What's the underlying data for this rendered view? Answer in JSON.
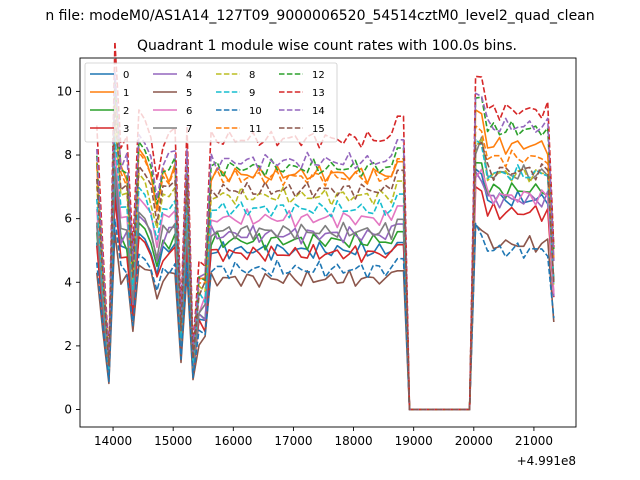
{
  "suptitle": "n file: modeM0/AS1A14_127T09_9000006520_54514cztM0_level2_quad_clean",
  "chart_data": {
    "type": "line",
    "title": "Quadrant 1 module wise count rates with 100.0s bins.",
    "xlabel": "",
    "ylabel": "",
    "offset_text": "+4.991e8",
    "xlim": [
      13450,
      21700
    ],
    "ylim": [
      -0.55,
      11.05
    ],
    "xticks": [
      14000,
      15000,
      16000,
      17000,
      18000,
      19000,
      20000,
      21000
    ],
    "yticks": [
      0,
      2,
      4,
      6,
      8,
      10
    ],
    "grid": false,
    "legend": {
      "placement": "top-left",
      "ncol": 4
    },
    "x": [
      13730,
      13830,
      13930,
      14030,
      14130,
      14230,
      14330,
      14430,
      14530,
      14630,
      14730,
      14830,
      14930,
      15030,
      15130,
      15230,
      15330,
      15430,
      15530,
      15630,
      15730,
      15830,
      15930,
      16030,
      16130,
      16230,
      16330,
      16430,
      16530,
      16630,
      16730,
      16830,
      16930,
      17030,
      17130,
      17230,
      17330,
      17430,
      17530,
      17630,
      17730,
      17830,
      17930,
      18030,
      18130,
      18230,
      18330,
      18430,
      18530,
      18630,
      18730,
      18830,
      18930,
      19030,
      19130,
      19230,
      19330,
      19430,
      19530,
      19630,
      19730,
      19830,
      19930,
      20030,
      20130,
      20230,
      20330,
      20430,
      20530,
      20630,
      20730,
      20830,
      20930,
      21030,
      21130,
      21230,
      21330
    ],
    "series": [
      {
        "name": "0",
        "color": "#1f77b4",
        "dashed": false,
        "base": 5.0,
        "gap_scale": 1.0,
        "after": 6.6
      },
      {
        "name": "1",
        "color": "#ff7f0e",
        "dashed": false,
        "base": 7.4,
        "gap_scale": 1.35,
        "after": 8.3
      },
      {
        "name": "2",
        "color": "#2ca02c",
        "dashed": false,
        "base": 5.3,
        "gap_scale": 1.1,
        "after": 6.9
      },
      {
        "name": "3",
        "color": "#d62728",
        "dashed": false,
        "base": 4.9,
        "gap_scale": 1.0,
        "after": 6.2
      },
      {
        "name": "4",
        "color": "#9467bd",
        "dashed": false,
        "base": 5.5,
        "gap_scale": 1.1,
        "after": 6.6
      },
      {
        "name": "5",
        "color": "#8c564b",
        "dashed": false,
        "base": 4.1,
        "gap_scale": 0.9,
        "after": 5.2
      },
      {
        "name": "6",
        "color": "#e377c2",
        "dashed": false,
        "base": 6.0,
        "gap_scale": 1.15,
        "after": 6.7
      },
      {
        "name": "7",
        "color": "#7f7f7f",
        "dashed": false,
        "base": 5.6,
        "gap_scale": 1.1,
        "after": 7.4
      },
      {
        "name": "8",
        "color": "#bcbd22",
        "dashed": true,
        "base": 6.7,
        "gap_scale": 1.25,
        "after": 7.4
      },
      {
        "name": "9",
        "color": "#17becf",
        "dashed": true,
        "base": 6.3,
        "gap_scale": 1.2,
        "after": 7.4
      },
      {
        "name": "10",
        "color": "#1f77b4",
        "dashed": true,
        "base": 4.4,
        "gap_scale": 0.9,
        "after": 5.0
      },
      {
        "name": "11",
        "color": "#ff7f0e",
        "dashed": true,
        "base": 7.3,
        "gap_scale": 1.35,
        "after": 7.9
      },
      {
        "name": "12",
        "color": "#2ca02c",
        "dashed": true,
        "base": 7.6,
        "gap_scale": 1.4,
        "after": 8.8
      },
      {
        "name": "13",
        "color": "#d62728",
        "dashed": true,
        "base": 8.5,
        "gap_scale": 1.5,
        "after": 9.4
      },
      {
        "name": "14",
        "color": "#9467bd",
        "dashed": true,
        "base": 7.8,
        "gap_scale": 1.4,
        "after": 8.9
      },
      {
        "name": "15",
        "color": "#8c564b",
        "dashed": true,
        "base": 6.9,
        "gap_scale": 1.25,
        "after": 7.5
      }
    ]
  }
}
